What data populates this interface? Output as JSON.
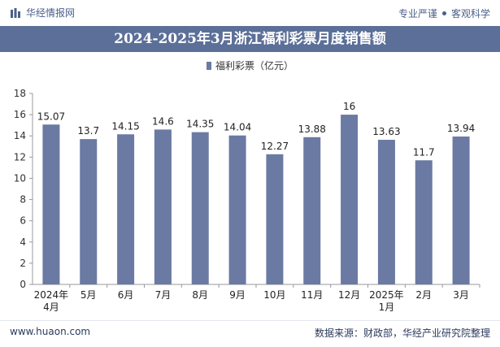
{
  "header": {
    "brand": "华经情报网",
    "tags": [
      "专业严谨",
      "客观科学"
    ]
  },
  "title": "2024-2025年3月浙江福利彩票月度销售额",
  "legend": "福利彩票（亿元）",
  "colors": {
    "bar": "#6b7aa3",
    "titlebar": "#5b6f98",
    "axis": "#999999"
  },
  "chart_data": {
    "type": "bar",
    "title": "2024-2025年3月浙江福利彩票月度销售额",
    "categories": [
      "2024年\n4月",
      "5月",
      "6月",
      "7月",
      "8月",
      "9月",
      "10月",
      "11月",
      "12月",
      "2025年\n1月",
      "2月",
      "3月"
    ],
    "series": [
      {
        "name": "福利彩票（亿元）",
        "values": [
          15.07,
          13.7,
          14.15,
          14.6,
          14.35,
          14.04,
          12.27,
          13.88,
          16,
          13.63,
          11.7,
          13.94
        ]
      }
    ],
    "value_labels": [
      "15.07",
      "13.7",
      "14.15",
      "14.6",
      "14.35",
      "14.04",
      "12.27",
      "13.88",
      "16",
      "13.63",
      "11.7",
      "13.94"
    ],
    "ylim": [
      0,
      18
    ],
    "yticks": [
      0,
      2,
      4,
      6,
      8,
      10,
      12,
      14,
      16,
      18
    ],
    "grid": false,
    "legend_position": "top-center"
  },
  "footer": {
    "website": "www.huaon.com",
    "source": "数据来源：财政部，华经产业研究院整理"
  }
}
